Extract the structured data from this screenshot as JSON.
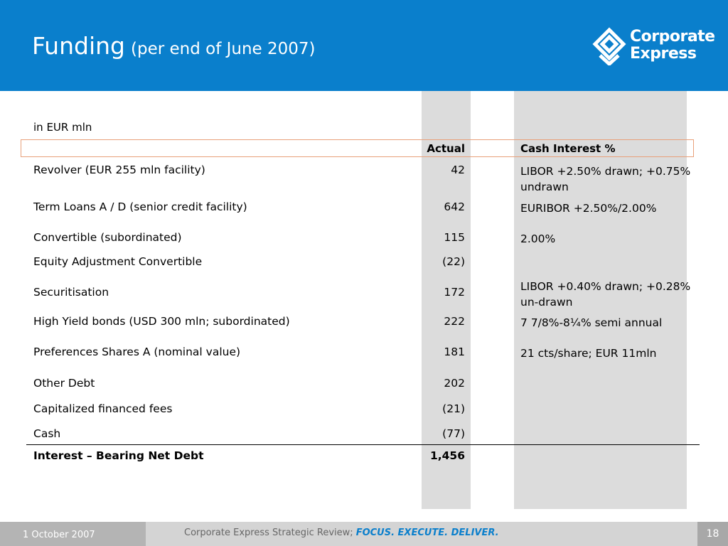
{
  "header": {
    "title": "Funding",
    "subtitle": "(per end of June 2007)",
    "logo_line1": "Corporate",
    "logo_line2": "Express",
    "bg_color": "#0a7fcc"
  },
  "table": {
    "unit_label": "in EUR mln",
    "col_actual": "Actual",
    "col_interest": "Cash Interest %",
    "rows": [
      {
        "label": "Revolver (EUR 255 mln facility)",
        "actual": "42",
        "interest": "LIBOR +2.50% drawn; +0.75% undrawn"
      },
      {
        "label": "Term Loans A / D (senior credit facility)",
        "actual": "642",
        "interest": "EURIBOR +2.50%/2.00%"
      },
      {
        "label": "Convertible (subordinated)",
        "actual": "115",
        "interest": "2.00%"
      },
      {
        "label": "Equity Adjustment Convertible",
        "actual": "(22)",
        "interest": ""
      },
      {
        "label": "Securitisation",
        "actual": "172",
        "interest": "LIBOR +0.40% drawn; +0.28% un-drawn"
      },
      {
        "label": "High Yield bonds (USD 300 mln; subordinated)",
        "actual": "222",
        "interest": "7 7/8%-8¼% semi annual"
      },
      {
        "label": "Preferences Shares A (nominal value)",
        "actual": "181",
        "interest": "21 cts/share; EUR 11mln"
      },
      {
        "label": "Other Debt",
        "actual": "202",
        "interest": ""
      },
      {
        "label": "Capitalized financed fees",
        "actual": "(21)",
        "interest": ""
      },
      {
        "label": "Cash",
        "actual": "(77)",
        "interest": ""
      }
    ],
    "total": {
      "label": "Interest – Bearing Net Debt",
      "actual": "1,456"
    }
  },
  "footer": {
    "date": "1 October 2007",
    "text": "Corporate Express Strategic Review;",
    "slogan": "FOCUS. EXECUTE. DELIVER.",
    "page": "18"
  }
}
